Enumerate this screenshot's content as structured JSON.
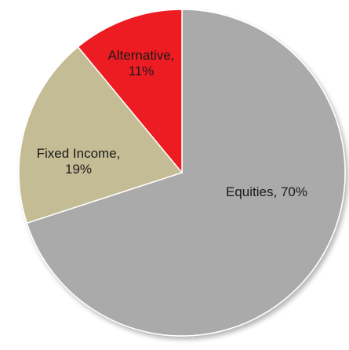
{
  "chart_data": {
    "type": "pie",
    "title": "",
    "start_angle_deg": 0,
    "direction": "clockwise",
    "slices": [
      {
        "label": "Equities",
        "value": 70,
        "display": [
          "Equities, 70%"
        ],
        "color": "#aaaaaa"
      },
      {
        "label": "Fixed Income",
        "value": 19,
        "display": [
          "Fixed Income,",
          "19%"
        ],
        "color": "#c4bc94"
      },
      {
        "label": "Alternative",
        "value": 11,
        "display": [
          "Alternative,",
          "11%"
        ],
        "color": "#ed1c24"
      }
    ],
    "legend": "none"
  }
}
